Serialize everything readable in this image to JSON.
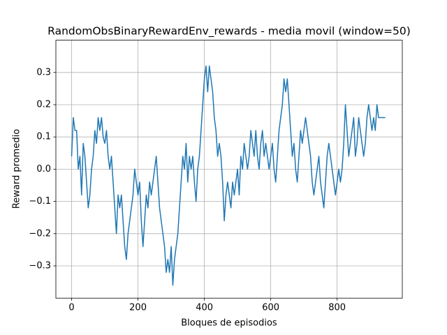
{
  "chart_data": {
    "type": "line",
    "title": "RandomObsBinaryRewardEnv_rewards - media movil (window=50)",
    "xlabel": "Bloques de episodios",
    "ylabel": "Reward promedio",
    "color": "#1f77b4",
    "grid": true,
    "xlim": [
      -47.45,
      996.45
    ],
    "ylim": [
      -0.4,
      0.4
    ],
    "xticks": [
      0,
      200,
      400,
      600,
      800
    ],
    "yticks": [
      {
        "value": -0.3,
        "label": "−0.3"
      },
      {
        "value": -0.2,
        "label": "−0.2"
      },
      {
        "value": -0.1,
        "label": "−0.1"
      },
      {
        "value": 0,
        "label": "0.0"
      },
      0.1,
      0.2,
      0.3
    ],
    "x": [
      0,
      5,
      10,
      15,
      20,
      25,
      30,
      35,
      40,
      45,
      50,
      55,
      60,
      65,
      70,
      75,
      80,
      85,
      90,
      95,
      100,
      105,
      110,
      115,
      120,
      125,
      130,
      135,
      140,
      145,
      150,
      155,
      160,
      165,
      170,
      175,
      180,
      185,
      190,
      195,
      200,
      205,
      210,
      215,
      220,
      225,
      230,
      235,
      240,
      245,
      250,
      255,
      260,
      265,
      270,
      275,
      280,
      285,
      290,
      295,
      300,
      305,
      310,
      315,
      320,
      325,
      330,
      335,
      340,
      345,
      350,
      355,
      360,
      365,
      370,
      375,
      380,
      385,
      390,
      395,
      400,
      405,
      410,
      415,
      420,
      425,
      430,
      435,
      440,
      445,
      450,
      455,
      460,
      465,
      470,
      475,
      480,
      485,
      490,
      495,
      500,
      505,
      510,
      515,
      520,
      525,
      530,
      535,
      540,
      545,
      550,
      555,
      560,
      565,
      570,
      575,
      580,
      585,
      590,
      595,
      600,
      605,
      610,
      615,
      620,
      625,
      630,
      635,
      640,
      645,
      650,
      655,
      660,
      665,
      670,
      675,
      680,
      685,
      690,
      695,
      700,
      705,
      710,
      715,
      720,
      725,
      730,
      735,
      740,
      745,
      750,
      755,
      760,
      765,
      770,
      775,
      780,
      785,
      790,
      795,
      800,
      805,
      810,
      815,
      820,
      825,
      830,
      835,
      840,
      845,
      850,
      855,
      860,
      865,
      870,
      875,
      880,
      885,
      890,
      895,
      900,
      905,
      910,
      915,
      920,
      925,
      930,
      935,
      940,
      945
    ],
    "values": [
      0.04,
      0.16,
      0.12,
      0.12,
      0.0,
      0.04,
      -0.08,
      0.08,
      0.04,
      -0.04,
      -0.12,
      -0.08,
      0.0,
      0.04,
      0.12,
      0.08,
      0.16,
      0.12,
      0.16,
      0.1,
      0.08,
      0.12,
      0.04,
      0.0,
      0.04,
      -0.04,
      -0.12,
      -0.2,
      -0.08,
      -0.12,
      -0.08,
      -0.16,
      -0.24,
      -0.28,
      -0.2,
      -0.16,
      -0.12,
      -0.08,
      0.0,
      -0.04,
      -0.08,
      -0.04,
      -0.16,
      -0.24,
      -0.16,
      -0.08,
      -0.12,
      -0.04,
      -0.08,
      -0.04,
      0.0,
      0.04,
      -0.04,
      -0.12,
      -0.16,
      -0.2,
      -0.24,
      -0.32,
      -0.28,
      -0.32,
      -0.24,
      -0.36,
      -0.28,
      -0.24,
      -0.2,
      -0.12,
      -0.04,
      0.04,
      0.0,
      0.08,
      -0.04,
      0.04,
      0.0,
      0.04,
      -0.04,
      -0.1,
      0.0,
      0.04,
      0.12,
      0.2,
      0.28,
      0.32,
      0.24,
      0.32,
      0.28,
      0.24,
      0.16,
      0.12,
      0.04,
      0.08,
      0.04,
      -0.04,
      -0.16,
      -0.08,
      -0.04,
      -0.08,
      -0.12,
      -0.04,
      -0.08,
      -0.04,
      0.0,
      -0.08,
      0.04,
      0.0,
      0.08,
      0.04,
      0.0,
      0.04,
      0.12,
      0.08,
      0.04,
      0.12,
      0.04,
      0.0,
      0.08,
      0.12,
      0.04,
      0.08,
      0.04,
      0.0,
      0.04,
      0.08,
      0.0,
      -0.04,
      0.04,
      0.12,
      0.16,
      0.2,
      0.28,
      0.24,
      0.28,
      0.2,
      0.12,
      0.04,
      0.08,
      0.0,
      -0.04,
      0.04,
      0.12,
      0.08,
      0.12,
      0.16,
      0.12,
      0.08,
      0.04,
      -0.04,
      -0.08,
      -0.04,
      0.0,
      0.04,
      -0.04,
      -0.08,
      -0.12,
      -0.04,
      0.04,
      0.08,
      0.04,
      0.0,
      -0.04,
      -0.08,
      -0.04,
      0.0,
      -0.04,
      0.0,
      0.08,
      0.2,
      0.12,
      0.04,
      0.08,
      0.12,
      0.16,
      0.04,
      0.08,
      0.16,
      0.12,
      0.08,
      0.04,
      0.08,
      0.16,
      0.2,
      0.16,
      0.12,
      0.16,
      0.12,
      0.2,
      0.16,
      0.16,
      0.16,
      0.16,
      0.16
    ]
  }
}
